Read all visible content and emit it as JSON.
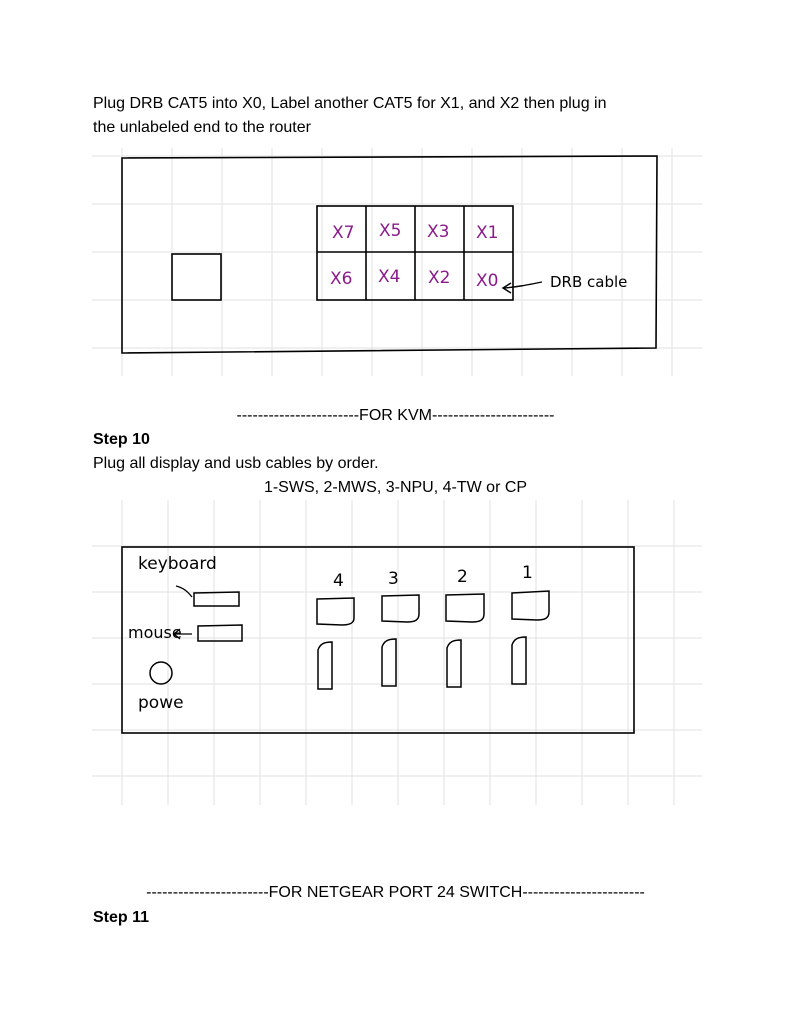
{
  "router_section": {
    "instruction_line1": "Plug DRB CAT5 into X0, Label another CAT5 for X1, and X2 then plug in",
    "instruction_line2": "the unlabeled end to the router",
    "ports_top": [
      "X7",
      "X5",
      "X3",
      "X1"
    ],
    "ports_bottom": [
      "X6",
      "X4",
      "X2",
      "X0"
    ],
    "annotation": "DRB cable",
    "port_label_color": "#8b1a8b"
  },
  "kvm_section": {
    "divider": "-----------------------FOR KVM-----------------------",
    "step_title": "Step 10",
    "instruction": "Plug all display and usb cables by order.",
    "order": "1-SWS, 2-MWS, 3-NPU, 4-TW or CP",
    "labels": {
      "keyboard": "keyboard",
      "mouse": "mouse",
      "power": "powe"
    },
    "port_numbers": [
      "4",
      "3",
      "2",
      "1"
    ]
  },
  "netgear_section": {
    "divider": "-----------------------FOR NETGEAR PORT 24 SWITCH-----------------------",
    "step_title": "Step 11"
  }
}
